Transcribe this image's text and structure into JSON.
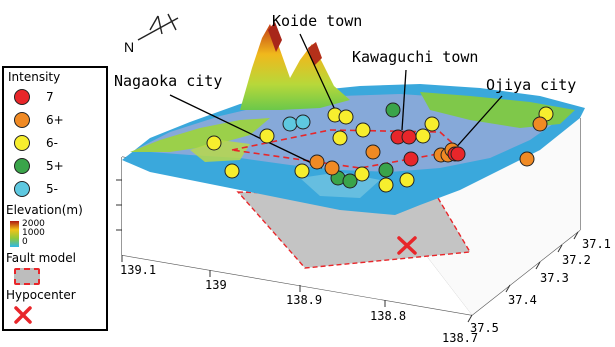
{
  "north_label": "N",
  "towns": {
    "koide": "Koide town",
    "kawaguchi": "Kawaguchi town",
    "nagaoka": "Nagaoka city",
    "ojiya": "Ojiya city"
  },
  "legend": {
    "intensity_title": "Intensity",
    "intensity_levels": [
      {
        "label": "7",
        "color": "#e8262a"
      },
      {
        "label": "6+",
        "color": "#f08a24"
      },
      {
        "label": "6-",
        "color": "#f7ee2e"
      },
      {
        "label": "5+",
        "color": "#3aa44a"
      },
      {
        "label": "5-",
        "color": "#5ec8e0"
      }
    ],
    "elevation_title": "Elevation(m)",
    "elevation_ticks": [
      "2000",
      "1000",
      "0"
    ],
    "fault_title": "Fault model",
    "hypocenter_title": "Hypocenter",
    "hypocenter_color": "#e8262a",
    "fault_color": "#bdbdbd"
  },
  "axes": {
    "longitude_ticks": [
      "139.1",
      "139",
      "138.9",
      "138.8",
      "138.7"
    ],
    "latitude_ticks": [
      "37.1",
      "37.2",
      "37.3",
      "37.4",
      "37.5"
    ]
  },
  "stations": [
    {
      "level": "6-"
    },
    {
      "level": "6-"
    },
    {
      "level": "5-"
    },
    {
      "level": "5-"
    },
    {
      "level": "6-"
    },
    {
      "level": "6-"
    },
    {
      "level": "6-"
    },
    {
      "level": "5+"
    },
    {
      "level": "6-"
    },
    {
      "level": "5+"
    },
    {
      "level": "6-"
    },
    {
      "level": "6+"
    },
    {
      "level": "6+"
    },
    {
      "level": "6+"
    },
    {
      "level": "5+"
    },
    {
      "level": "6-"
    },
    {
      "level": "6-"
    },
    {
      "level": "6-"
    },
    {
      "level": "7"
    },
    {
      "level": "7"
    },
    {
      "level": "6-"
    },
    {
      "level": "7"
    },
    {
      "level": "5+"
    },
    {
      "level": "6+"
    },
    {
      "level": "6-"
    },
    {
      "level": "6+"
    },
    {
      "level": "6+"
    },
    {
      "level": "7"
    },
    {
      "level": "7"
    },
    {
      "level": "6-"
    },
    {
      "level": "6-"
    },
    {
      "level": "6+"
    },
    {
      "level": "6+"
    }
  ]
}
